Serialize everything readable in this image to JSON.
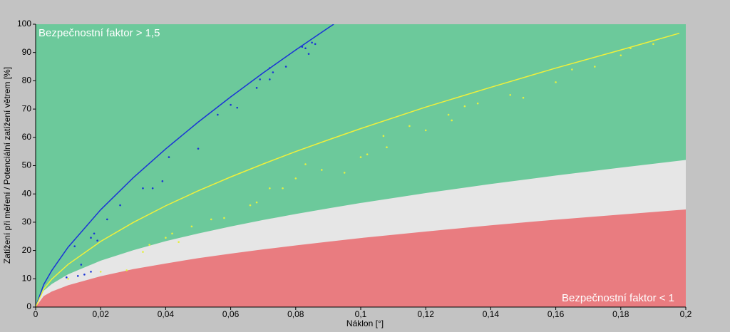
{
  "chart_data": {
    "type": "line",
    "xlabel": "Náklon [°]",
    "ylabel": "Zatížení při měření / Potenciální zatížení větrem [%]",
    "annotations": [
      "Bezpečnostní faktor > 1,5",
      "Bezpečnostní faktor < 1"
    ],
    "background_color": "#6cc99b",
    "xlim": [
      0,
      0.2
    ],
    "ylim": [
      0,
      100
    ],
    "xticks": [
      0,
      {
        "value": 0.02,
        "label": "0,02"
      },
      {
        "value": 0.04,
        "label": "0,04"
      },
      {
        "value": 0.06,
        "label": "0,06"
      },
      {
        "value": 0.08,
        "label": "0,08"
      },
      {
        "value": 0.1,
        "label": "0,1"
      },
      {
        "value": 0.12,
        "label": "0,12"
      },
      {
        "value": 0.14,
        "label": "0,14"
      },
      {
        "value": 0.16,
        "label": "0,16"
      },
      {
        "value": 0.18,
        "label": "0,18"
      },
      {
        "value": 0.2,
        "label": "0,2"
      }
    ],
    "yticks": [
      0,
      10,
      20,
      30,
      40,
      50,
      60,
      70,
      80,
      90,
      100
    ],
    "grid": false,
    "series": [
      {
        "type": "area",
        "color": "#e6e6e6",
        "x": [
          0,
          0.0025,
          0.005,
          0.01,
          0.02,
          0.03,
          0.04,
          0.05,
          0.06,
          0.07,
          0.08,
          0.09,
          0.1,
          0.12,
          0.14,
          0.16,
          0.18,
          0.2
        ],
        "values": [
          0,
          5.8,
          8.2,
          11.6,
          16.4,
          20.1,
          23.3,
          26.0,
          28.5,
          30.8,
          32.9,
          34.9,
          36.8,
          40.3,
          43.5,
          46.5,
          49.3,
          52
        ]
      },
      {
        "type": "area",
        "color": "#e97c80",
        "x": [
          0,
          0.0025,
          0.005,
          0.01,
          0.02,
          0.03,
          0.04,
          0.05,
          0.06,
          0.07,
          0.08,
          0.09,
          0.1,
          0.12,
          0.14,
          0.16,
          0.18,
          0.2
        ],
        "values": [
          0,
          3.9,
          5.5,
          7.7,
          10.9,
          13.4,
          15.4,
          17.3,
          18.9,
          20.4,
          21.8,
          23.1,
          24.4,
          26.7,
          28.9,
          30.9,
          32.7,
          34.5
        ]
      },
      {
        "type": "line",
        "color": "#1a34d6",
        "x": [
          0,
          0.0025,
          0.005,
          0.01,
          0.02,
          0.03,
          0.04,
          0.05,
          0.06,
          0.07,
          0.08,
          0.09,
          0.0917
        ],
        "values": [
          0,
          8.0,
          13.0,
          21.2,
          34.4,
          45.7,
          55.9,
          65.4,
          74.3,
          82.8,
          90.9,
          98.7,
          100
        ]
      },
      {
        "type": "line",
        "color": "#f0f03a",
        "x": [
          0,
          0.0025,
          0.005,
          0.01,
          0.02,
          0.03,
          0.04,
          0.05,
          0.06,
          0.07,
          0.08,
          0.09,
          0.1,
          0.12,
          0.14,
          0.16,
          0.18,
          0.198
        ],
        "values": [
          0,
          6.4,
          9.9,
          15.1,
          23.2,
          29.9,
          35.8,
          41.1,
          46.0,
          50.6,
          55.0,
          59.1,
          63.1,
          70.7,
          77.7,
          84.5,
          90.9,
          96.8
        ]
      },
      {
        "type": "scatter",
        "color": "#1a34d6",
        "x": [
          0.0095,
          0.012,
          0.013,
          0.014,
          0.015,
          0.017,
          0.017,
          0.018,
          0.019,
          0.022,
          0.026,
          0.033,
          0.036,
          0.039,
          0.041,
          0.05,
          0.056,
          0.06,
          0.062,
          0.068,
          0.069,
          0.072,
          0.072,
          0.073,
          0.077,
          0.082,
          0.083,
          0.084,
          0.085,
          0.086
        ],
        "values": [
          10.5,
          21.5,
          11,
          15,
          11.5,
          12.5,
          24.5,
          26,
          23.5,
          31,
          36,
          42,
          42,
          44.5,
          53,
          56,
          68,
          71.5,
          70.5,
          77.5,
          80.5,
          84.5,
          80.5,
          83,
          85,
          92,
          91.5,
          89.5,
          93.5,
          93
        ]
      },
      {
        "type": "scatter",
        "color": "#e4f040",
        "x": [
          0.01,
          0.02,
          0.028,
          0.033,
          0.035,
          0.04,
          0.042,
          0.044,
          0.048,
          0.054,
          0.058,
          0.066,
          0.068,
          0.072,
          0.076,
          0.08,
          0.083,
          0.088,
          0.095,
          0.1,
          0.102,
          0.107,
          0.108,
          0.115,
          0.12,
          0.127,
          0.128,
          0.132,
          0.136,
          0.146,
          0.15,
          0.16,
          0.165,
          0.172,
          0.18,
          0.183,
          0.19
        ],
        "values": [
          10,
          12.5,
          13,
          19.5,
          22,
          24.5,
          26,
          23,
          28.5,
          31,
          31.5,
          36,
          37,
          42,
          42,
          45.5,
          50.5,
          48.5,
          47.5,
          53,
          54,
          60.5,
          56.5,
          64,
          62.5,
          68,
          66,
          71,
          72,
          75,
          74,
          79.5,
          84,
          85,
          89,
          91.5,
          93
        ]
      }
    ]
  }
}
